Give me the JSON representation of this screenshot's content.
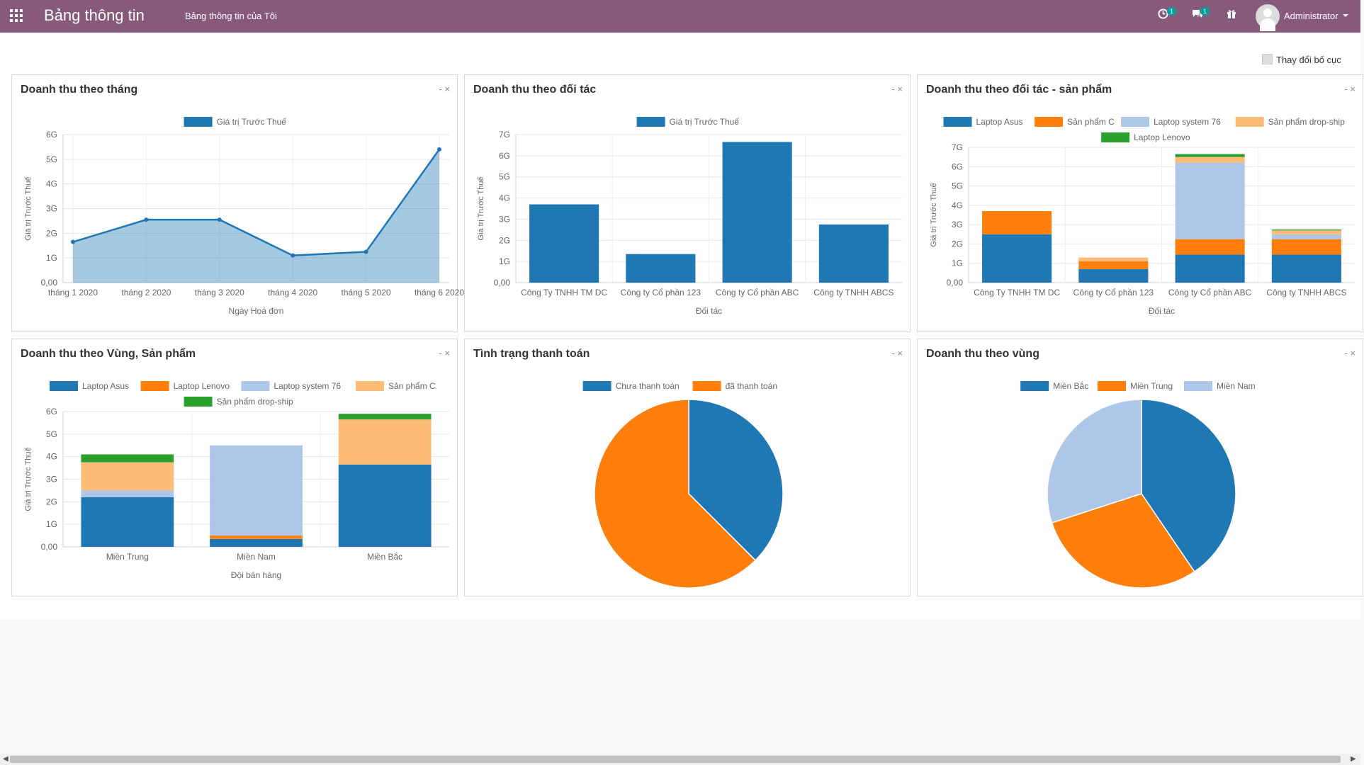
{
  "navbar": {
    "app_title": "Bảng thông tin",
    "menu_item": "Bảng thông tin của Tôi",
    "activity_count": "1",
    "message_count": "1",
    "user_name": "Administrator",
    "icons": [
      "apps-grid-icon",
      "clock-icon",
      "chat-icon",
      "gift-icon"
    ]
  },
  "layout_button": "Thay đổi bố cục",
  "panel_controls": "- ×",
  "colors": {
    "navbar": "#875a7b",
    "blue": "#1f77b4",
    "orange": "#ff7f0e",
    "light_blue": "#aec7e8",
    "light_orange": "#ffbb78",
    "green": "#2ca02c"
  },
  "chart_data": [
    {
      "id": "c1",
      "type": "area",
      "title": "Doanh thu theo tháng",
      "legend": [
        "Giá trị Trước Thuế"
      ],
      "xlabel": "Ngày Hoá đơn",
      "ylabel": "Giá trị Trước Thuế",
      "categories": [
        "tháng 1 2020",
        "tháng 2 2020",
        "tháng 3 2020",
        "tháng 4 2020",
        "tháng 5 2020",
        "tháng 6 2020"
      ],
      "values": [
        1.65,
        2.55,
        2.55,
        1.1,
        1.25,
        5.4
      ],
      "ylim": [
        0,
        6
      ],
      "yticks": [
        "0,00",
        "1G",
        "2G",
        "3G",
        "4G",
        "5G",
        "6G"
      ],
      "grid": true
    },
    {
      "id": "c2",
      "type": "bar",
      "title": "Doanh thu theo đối tác",
      "legend": [
        "Giá trị Trước Thuế"
      ],
      "xlabel": "Đối tác",
      "ylabel": "Giá trị Trước Thuế",
      "categories": [
        "Công Ty TNHH TM DC",
        "Công ty Cổ phần 123",
        "Công ty Cổ phần ABC",
        "Công ty TNHH ABCS"
      ],
      "values": [
        3.7,
        1.35,
        6.65,
        2.75
      ],
      "ylim": [
        0,
        7
      ],
      "yticks": [
        "0,00",
        "1G",
        "2G",
        "3G",
        "4G",
        "5G",
        "6G",
        "7G"
      ],
      "grid": true
    },
    {
      "id": "c3",
      "type": "bar",
      "stacked": true,
      "title": "Doanh thu theo đối tác - sản phẩm",
      "xlabel": "Đối tác",
      "ylabel": "Giá trị Trước Thuế",
      "categories": [
        "Công Ty TNHH TM DC",
        "Công ty Cổ phần 123",
        "Công ty Cổ phần ABC",
        "Công ty TNHH ABCS"
      ],
      "series": [
        {
          "name": "Laptop Asus",
          "values": [
            2.5,
            0.7,
            1.45,
            1.45
          ]
        },
        {
          "name": "Sản phẩm C",
          "values": [
            1.2,
            0.4,
            0.8,
            0.8
          ]
        },
        {
          "name": "Laptop system 76",
          "values": [
            0,
            0,
            3.95,
            0.25
          ]
        },
        {
          "name": "Sản phẩm drop-ship",
          "values": [
            0,
            0.2,
            0.3,
            0.2
          ]
        },
        {
          "name": "Laptop Lenovo",
          "values": [
            0,
            0,
            0.15,
            0.05
          ]
        }
      ],
      "ylim": [
        0,
        7
      ],
      "yticks": [
        "0,00",
        "1G",
        "2G",
        "3G",
        "4G",
        "5G",
        "6G",
        "7G"
      ],
      "grid": true
    },
    {
      "id": "c4",
      "type": "bar",
      "stacked": true,
      "title": "Doanh thu theo Vùng, Sản phẩm",
      "xlabel": "Đội bán hàng",
      "ylabel": "Giá trị Trước Thuế",
      "categories": [
        "Miền Trung",
        "Miền Nam",
        "Miền Bắc"
      ],
      "series": [
        {
          "name": "Laptop Asus",
          "values": [
            2.2,
            0.35,
            3.65
          ]
        },
        {
          "name": "Laptop Lenovo",
          "values": [
            0,
            0.15,
            0
          ]
        },
        {
          "name": "Laptop system 76",
          "values": [
            0.3,
            4.0,
            0
          ]
        },
        {
          "name": "Sản phẩm C",
          "values": [
            1.25,
            0,
            2.0
          ]
        },
        {
          "name": "Sản phẩm drop-ship",
          "values": [
            0.35,
            0,
            0.25
          ]
        }
      ],
      "ylim": [
        0,
        6
      ],
      "yticks": [
        "0,00",
        "1G",
        "2G",
        "3G",
        "4G",
        "5G",
        "6G"
      ],
      "grid": true
    },
    {
      "id": "c5",
      "type": "pie",
      "title": "Tình trạng thanh toán",
      "series": [
        {
          "name": "Chưa thanh toán",
          "value": 37.5
        },
        {
          "name": "đã thanh toán",
          "value": 62.5
        }
      ]
    },
    {
      "id": "c6",
      "type": "pie",
      "title": "Doanh thu theo vùng",
      "series": [
        {
          "name": "Miền Bắc",
          "value": 40.5
        },
        {
          "name": "Miền Trung",
          "value": 29.5
        },
        {
          "name": "Miền Nam",
          "value": 30
        }
      ]
    }
  ]
}
